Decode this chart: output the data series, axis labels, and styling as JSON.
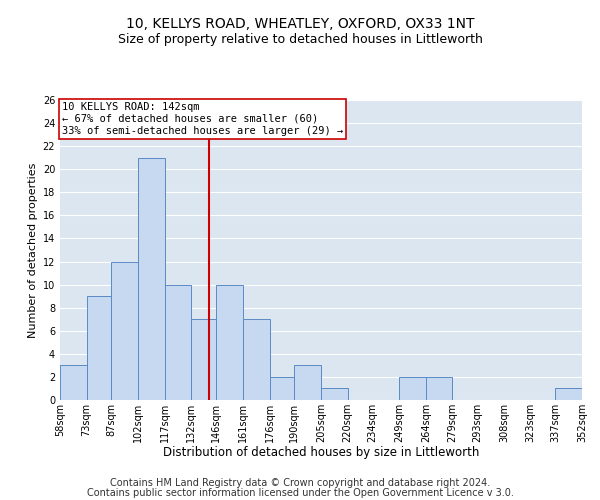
{
  "title_line1": "10, KELLYS ROAD, WHEATLEY, OXFORD, OX33 1NT",
  "title_line2": "Size of property relative to detached houses in Littleworth",
  "xlabel": "Distribution of detached houses by size in Littleworth",
  "ylabel": "Number of detached properties",
  "bin_edges": [
    58,
    73,
    87,
    102,
    117,
    132,
    146,
    161,
    176,
    190,
    205,
    220,
    234,
    249,
    264,
    279,
    293,
    308,
    323,
    337,
    352
  ],
  "bar_heights": [
    3,
    9,
    12,
    21,
    10,
    7,
    10,
    7,
    2,
    3,
    1,
    0,
    0,
    2,
    2,
    0,
    0,
    0,
    0,
    1
  ],
  "bar_color": "#c6d9f0",
  "bar_edgecolor": "#5a8ac6",
  "grid_color": "#ffffff",
  "bg_color": "#dce6f1",
  "property_size": 142,
  "vline_color": "#cc0000",
  "annotation_line1": "10 KELLYS ROAD: 142sqm",
  "annotation_line2": "← 67% of detached houses are smaller (60)",
  "annotation_line3": "33% of semi-detached houses are larger (29) →",
  "annotation_fontsize": 7.5,
  "ylim": [
    0,
    26
  ],
  "yticks": [
    0,
    2,
    4,
    6,
    8,
    10,
    12,
    14,
    16,
    18,
    20,
    22,
    24,
    26
  ],
  "tick_labels": [
    "58sqm",
    "73sqm",
    "87sqm",
    "102sqm",
    "117sqm",
    "132sqm",
    "146sqm",
    "161sqm",
    "176sqm",
    "190sqm",
    "205sqm",
    "220sqm",
    "234sqm",
    "249sqm",
    "264sqm",
    "279sqm",
    "293sqm",
    "308sqm",
    "323sqm",
    "337sqm",
    "352sqm"
  ],
  "footer_line1": "Contains HM Land Registry data © Crown copyright and database right 2024.",
  "footer_line2": "Contains public sector information licensed under the Open Government Licence v 3.0.",
  "title_fontsize": 10,
  "subtitle_fontsize": 9,
  "xlabel_fontsize": 8.5,
  "ylabel_fontsize": 8,
  "footer_fontsize": 7,
  "tick_fontsize": 7
}
